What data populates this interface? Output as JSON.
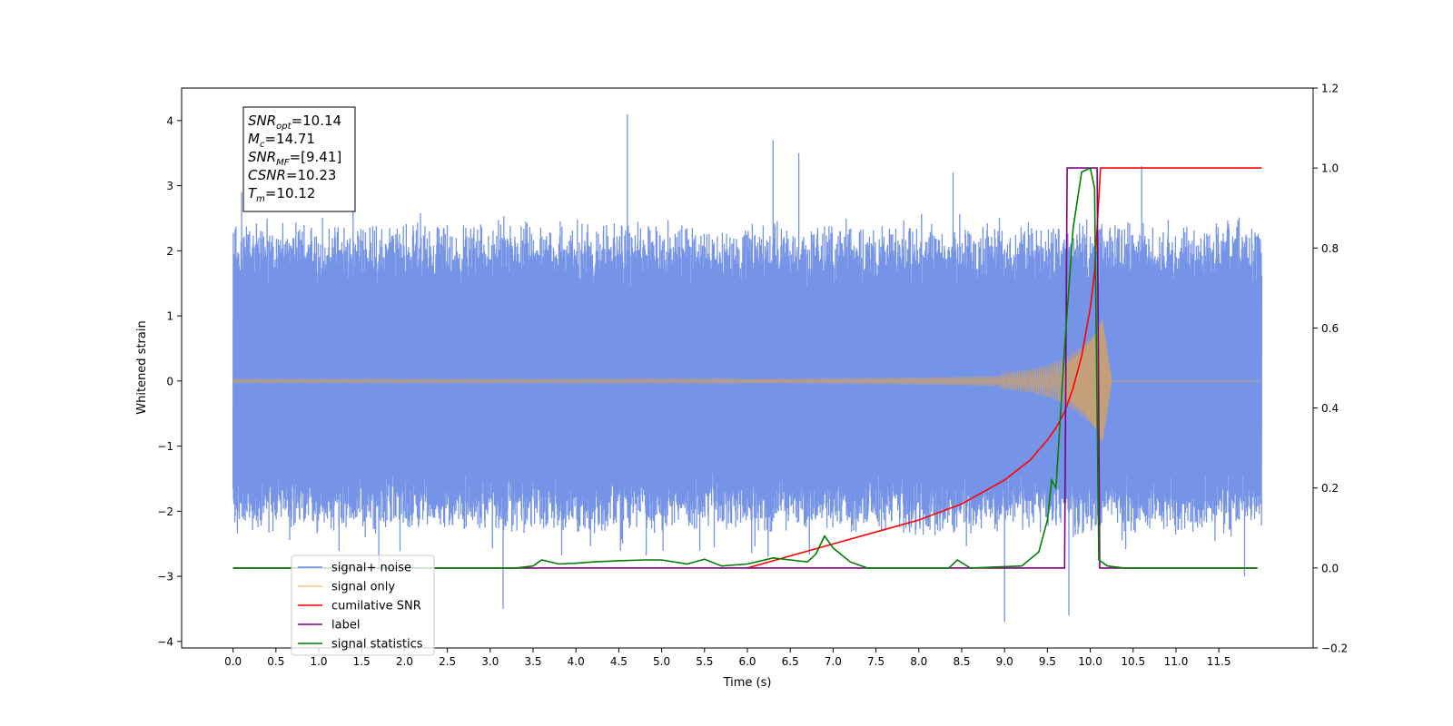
{
  "chart_data": {
    "type": "line",
    "xlabel": "Time (s)",
    "ylabel_left": "Whitened strain",
    "ylabel_right": "",
    "xlim": [
      -0.6,
      12.6
    ],
    "ylim_left": [
      -4.1,
      4.5
    ],
    "ylim_right": [
      -0.2,
      1.2
    ],
    "xticks": [
      0.0,
      0.5,
      1.0,
      1.5,
      2.0,
      2.5,
      3.0,
      3.5,
      4.0,
      4.5,
      5.0,
      5.5,
      6.0,
      6.5,
      7.0,
      7.5,
      8.0,
      8.5,
      9.0,
      9.5,
      10.0,
      10.5,
      11.0,
      11.5
    ],
    "xtick_labels": [
      "0.0",
      "0.5",
      "1.0",
      "1.5",
      "2.0",
      "2.5",
      "3.0",
      "3.5",
      "4.0",
      "4.5",
      "5.0",
      "5.5",
      "6.0",
      "6.5",
      "7.0",
      "7.5",
      "8.0",
      "8.5",
      "9.0",
      "9.5",
      "10.0",
      "10.5",
      "11.0",
      "11.5"
    ],
    "yticks_left": [
      -4,
      -3,
      -2,
      -1,
      0,
      1,
      2,
      3,
      4
    ],
    "ytick_labels_left": [
      "−4",
      "−3",
      "−2",
      "−1",
      "0",
      "1",
      "2",
      "3",
      "4"
    ],
    "yticks_right": [
      -0.2,
      0.0,
      0.2,
      0.4,
      0.6,
      0.8,
      1.0,
      1.2
    ],
    "ytick_labels_right": [
      "−0.2",
      "0.0",
      "0.2",
      "0.4",
      "0.6",
      "0.8",
      "1.0",
      "1.2"
    ],
    "grid": false,
    "legend_placement": "lower-left",
    "annotation": {
      "lines": [
        {
          "main": "SNR",
          "sub": "opt",
          "rest": "=10.14"
        },
        {
          "main": "M",
          "sub": "c",
          "rest": "=14.71"
        },
        {
          "main": "SNR",
          "sub": "MF",
          "rest": "=[9.41]"
        },
        {
          "main": "CSNR",
          "sub": "",
          "rest": "=10.23"
        },
        {
          "main": "T",
          "sub": "m",
          "rest": "=10.12"
        }
      ]
    },
    "legend": [
      {
        "name": "signal+ noise",
        "color": "#6f8ee6"
      },
      {
        "name": "signal only",
        "color": "#f6c27a"
      },
      {
        "name": "cumilative SNR",
        "color": "#ff0000"
      },
      {
        "name": "label",
        "color": "#800080"
      },
      {
        "name": "signal statistics",
        "color": "#008000"
      }
    ],
    "series": [
      {
        "name": "signal+ noise",
        "axis": "left",
        "color": "#6f8ee6",
        "kind": "noise-band",
        "x_range": [
          0.0,
          12.0
        ],
        "band": [
          -1.6,
          1.6
        ],
        "spikes": [
          {
            "x": 4.6,
            "y": 4.1
          },
          {
            "x": 6.3,
            "y": 3.7
          },
          {
            "x": 6.6,
            "y": 3.5
          },
          {
            "x": 1.4,
            "y": 3.25
          },
          {
            "x": 8.4,
            "y": 3.2
          },
          {
            "x": 10.6,
            "y": 3.3
          },
          {
            "x": 3.15,
            "y": -3.5
          },
          {
            "x": 9.0,
            "y": -3.7
          },
          {
            "x": 9.75,
            "y": -3.6
          },
          {
            "x": 11.8,
            "y": -3.0
          },
          {
            "x": 1.7,
            "y": -2.9
          },
          {
            "x": 0.1,
            "y": 2.9
          }
        ]
      },
      {
        "name": "signal only",
        "axis": "left",
        "color": "#f6c27a",
        "kind": "chirp",
        "x_range": [
          0.0,
          12.0
        ],
        "merger": 10.12
      },
      {
        "name": "cumilative SNR",
        "axis": "right",
        "color": "#ff0000",
        "x": [
          6.0,
          6.5,
          7.0,
          7.5,
          8.0,
          8.5,
          9.0,
          9.3,
          9.5,
          9.6,
          9.7,
          9.8,
          9.9,
          10.0,
          10.05,
          10.12,
          12.0
        ],
        "y": [
          0.0,
          0.03,
          0.06,
          0.09,
          0.12,
          0.16,
          0.22,
          0.27,
          0.32,
          0.35,
          0.39,
          0.45,
          0.53,
          0.65,
          0.74,
          1.0,
          1.0
        ]
      },
      {
        "name": "label",
        "axis": "right",
        "color": "#800080",
        "x": [
          0.0,
          9.7,
          9.73,
          10.08,
          10.11,
          11.95
        ],
        "y": [
          0.0,
          0.0,
          1.0,
          1.0,
          0.0,
          0.0
        ]
      },
      {
        "name": "signal statistics",
        "axis": "right",
        "color": "#008000",
        "x": [
          0.0,
          3.3,
          3.5,
          3.6,
          3.8,
          4.0,
          4.2,
          4.5,
          4.8,
          5.0,
          5.3,
          5.5,
          5.7,
          6.0,
          6.3,
          6.5,
          6.7,
          6.8,
          6.9,
          7.0,
          7.2,
          7.4,
          8.0,
          8.35,
          8.45,
          8.6,
          9.2,
          9.4,
          9.5,
          9.55,
          9.6,
          9.7,
          9.8,
          9.9,
          10.0,
          10.05,
          10.1,
          10.2,
          10.4,
          11.95
        ],
        "y": [
          0.0,
          0.0,
          0.005,
          0.02,
          0.01,
          0.012,
          0.015,
          0.018,
          0.02,
          0.02,
          0.01,
          0.022,
          0.005,
          0.01,
          0.025,
          0.02,
          0.015,
          0.035,
          0.08,
          0.05,
          0.015,
          0.0,
          0.0,
          0.0,
          0.02,
          0.0,
          0.005,
          0.04,
          0.12,
          0.22,
          0.2,
          0.55,
          0.85,
          0.99,
          1.0,
          0.95,
          0.02,
          0.005,
          0.0,
          0.0
        ]
      }
    ]
  }
}
